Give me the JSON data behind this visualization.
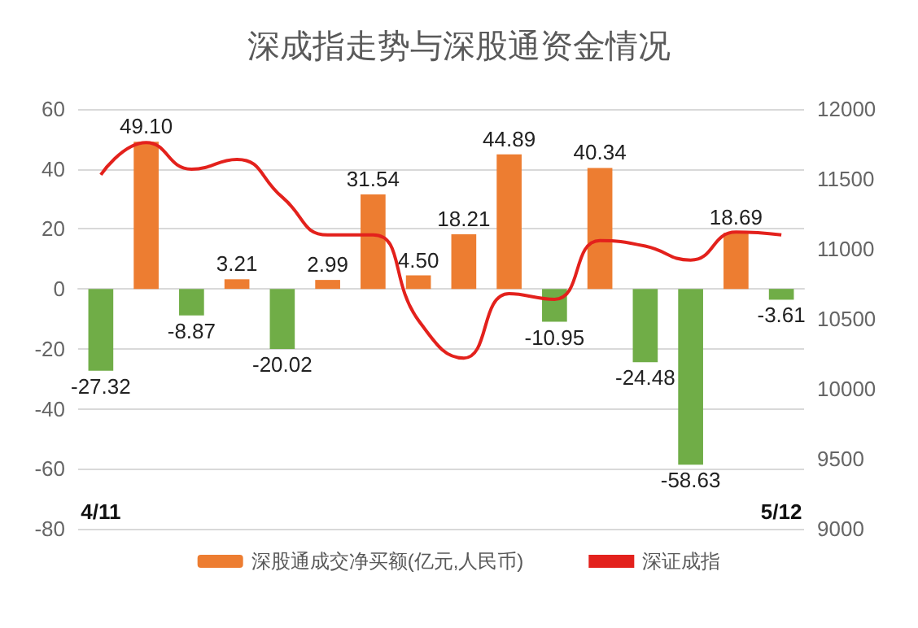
{
  "chart_data": {
    "type": "bar",
    "title": "深成指走势与深股通资金情况",
    "categories": [
      "4/11",
      null,
      null,
      null,
      null,
      null,
      null,
      null,
      null,
      null,
      null,
      null,
      null,
      null,
      null,
      "5/12"
    ],
    "series": [
      {
        "name": "深股通成交净买额(亿元,人民币)",
        "color": "#ed7d31",
        "colors": [
          "#70ad47",
          "#ed7d31",
          "#70ad47",
          "#ed7d31",
          "#70ad47",
          "#ed7d31",
          "#ed7d31",
          "#ed7d31",
          "#ed7d31",
          "#ed7d31",
          "#70ad47",
          "#ed7d31",
          "#70ad47",
          "#70ad47",
          "#ed7d31",
          "#70ad47"
        ],
        "values": [
          -27.32,
          49.1,
          -8.87,
          3.21,
          -20.02,
          2.99,
          31.54,
          4.5,
          18.21,
          44.89,
          -10.95,
          40.34,
          -24.48,
          -58.63,
          18.69,
          -3.61
        ],
        "value_labels": [
          "-27.32",
          "49.10",
          "-8.87",
          "3.21",
          "-20.02",
          "2.99",
          "31.54",
          "4.50",
          "18.21",
          "44.89",
          "-10.95",
          "40.34",
          "-24.48",
          "-58.63",
          "18.69",
          "-3.61"
        ]
      },
      {
        "name": "深证成指",
        "type": "line",
        "axis": "y2",
        "color": "#e3211c",
        "marker": "none",
        "values": [
          11530,
          11760,
          11570,
          11640,
          11370,
          11100,
          11100,
          10490,
          10220,
          10680,
          10640,
          11060,
          11020,
          10920,
          11120,
          11100
        ]
      }
    ],
    "ylim": [
      -80,
      60
    ],
    "yticks": [
      -80,
      -60,
      -40,
      -20,
      0,
      20,
      40,
      60
    ],
    "y2lim": [
      9000,
      12000
    ],
    "y2ticks": [
      9000,
      9500,
      10000,
      10500,
      11000,
      11500,
      12000
    ],
    "grid": "y",
    "legend": "bottom"
  }
}
